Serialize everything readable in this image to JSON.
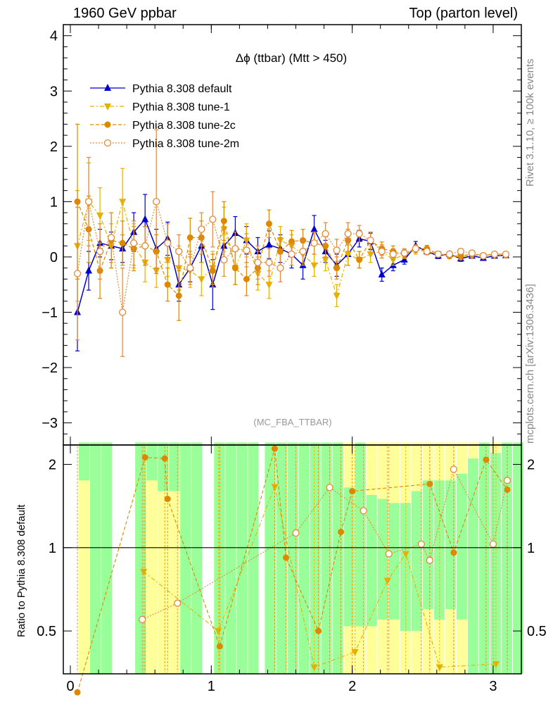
{
  "header": {
    "left": "1960 GeV ppbar",
    "right": "Top (parton level)"
  },
  "side": {
    "rivet": "Rivet 3.1.10, ≥ 100k events",
    "mcplots": "mcplots.cern.ch [arXiv:1306.3436]"
  },
  "chart_data": {
    "type": "line",
    "title": "Δϕ (ttbar) (Mtt > 450)",
    "watermark": "(MC_FBA_TTBAR)",
    "xlabel": "",
    "ylabel": "",
    "ratio_ylabel": "Ratio to Pythia 8.308 default",
    "xlim": [
      -0.05,
      3.2
    ],
    "ylim": [
      -3.4,
      4.2
    ],
    "ratio_ylim": [
      0.35,
      2.35
    ],
    "ratio_scale": "log",
    "x_ticks": [
      "0",
      "1",
      "2",
      "3"
    ],
    "y_ticks": [
      "4",
      "3",
      "2",
      "1",
      "0",
      "−1",
      "−2",
      "−3"
    ],
    "ratio_ticks": [
      "2",
      "1",
      "0.5"
    ],
    "legend_position": "top-left",
    "x": [
      0.05,
      0.13,
      0.21,
      0.29,
      0.37,
      0.45,
      0.53,
      0.61,
      0.69,
      0.77,
      0.85,
      0.93,
      1.01,
      1.09,
      1.17,
      1.25,
      1.33,
      1.41,
      1.49,
      1.57,
      1.65,
      1.73,
      1.81,
      1.89,
      1.97,
      2.05,
      2.13,
      2.21,
      2.29,
      2.37,
      2.45,
      2.53,
      2.61,
      2.69,
      2.77,
      2.85,
      2.93,
      3.01,
      3.09
    ],
    "series": [
      {
        "name": "Pythia 8.308 default",
        "color": "#0000cc",
        "marker": "triangle-up",
        "values": [
          -1.0,
          -0.25,
          0.25,
          0.2,
          0.15,
          0.45,
          0.68,
          0.15,
          0.33,
          -0.5,
          -0.2,
          0.2,
          -0.5,
          0.2,
          0.43,
          0.3,
          0.1,
          0.22,
          0.15,
          0.05,
          -0.15,
          0.5,
          0.1,
          -0.15,
          0.05,
          0.33,
          0.28,
          -0.32,
          -0.15,
          -0.05,
          0.2,
          0.1,
          0.02,
          0.05,
          -0.03,
          0.02,
          -0.02,
          0.02,
          0.03
        ],
        "errors": [
          0.7,
          0.35,
          0.25,
          0.25,
          0.25,
          0.35,
          0.45,
          0.35,
          0.3,
          0.3,
          0.25,
          0.3,
          0.45,
          0.3,
          0.3,
          0.25,
          0.25,
          0.25,
          0.25,
          0.25,
          0.25,
          0.25,
          0.2,
          0.2,
          0.2,
          0.15,
          0.15,
          0.12,
          0.1,
          0.08,
          0.08,
          0.06,
          0.05,
          0.05,
          0.05,
          0.04,
          0.04,
          0.04,
          0.04
        ]
      },
      {
        "name": "Pythia 8.308 tune-1",
        "color": "#e6b000",
        "marker": "triangle-down",
        "values": [
          0.2,
          1.0,
          0.75,
          0.2,
          1.0,
          0.2,
          -0.1,
          -0.25,
          -0.05,
          -0.2,
          -0.25,
          -0.4,
          -0.2,
          0.5,
          -0.2,
          0.3,
          -0.3,
          -0.5,
          0.3,
          0.2,
          0.05,
          -0.15,
          -0.05,
          -0.7,
          0.05,
          -0.05,
          0.05,
          0.1,
          -0.05,
          0.05,
          0.12,
          0.1,
          0.05,
          0.02,
          0.0,
          0.03,
          0.02,
          0.03,
          0.03
        ],
        "errors": [
          1.0,
          0.7,
          0.5,
          0.4,
          0.6,
          0.4,
          0.35,
          0.3,
          0.3,
          0.4,
          0.3,
          0.3,
          0.3,
          0.4,
          0.3,
          0.3,
          0.3,
          0.25,
          0.25,
          0.2,
          0.2,
          0.2,
          0.2,
          0.2,
          0.2,
          0.15,
          0.15,
          0.12,
          0.1,
          0.08,
          0.07,
          0.06,
          0.05,
          0.05,
          0.05,
          0.04,
          0.04,
          0.04,
          0.04
        ]
      },
      {
        "name": "Pythia 8.308 tune-2c",
        "color": "#dd8800",
        "marker": "circle",
        "values": [
          1.0,
          0.5,
          -0.25,
          0.3,
          0.25,
          0.15,
          0.2,
          0.1,
          -0.5,
          -0.7,
          0.35,
          0.35,
          -0.25,
          0.65,
          -0.2,
          -0.4,
          -0.2,
          0.6,
          0.1,
          0.28,
          0.3,
          0.25,
          0.2,
          -0.2,
          0.3,
          -0.05,
          0.3,
          0.15,
          0.1,
          0.05,
          0.15,
          0.15,
          0.05,
          0.02,
          0.02,
          0.05,
          0.03,
          0.05,
          0.05
        ],
        "errors": [
          1.4,
          0.6,
          0.5,
          0.5,
          0.4,
          0.4,
          0.35,
          0.3,
          0.3,
          0.45,
          0.35,
          0.3,
          0.3,
          0.35,
          0.3,
          0.3,
          0.3,
          0.25,
          0.25,
          0.2,
          0.2,
          0.2,
          0.2,
          0.2,
          0.2,
          0.15,
          0.15,
          0.12,
          0.1,
          0.08,
          0.07,
          0.06,
          0.05,
          0.05,
          0.05,
          0.04,
          0.04,
          0.04,
          0.04
        ]
      },
      {
        "name": "Pythia 8.308 tune-2m",
        "color": "#e08a3a",
        "marker": "open-circle",
        "values": [
          -0.3,
          1.0,
          0.1,
          0.35,
          -1.0,
          0.25,
          0.2,
          1.0,
          0.25,
          0.1,
          -0.2,
          0.5,
          0.68,
          -0.05,
          0.15,
          0.12,
          -0.1,
          -0.1,
          -0.2,
          0.05,
          0.1,
          0.25,
          0.42,
          0.12,
          0.42,
          0.42,
          0.3,
          0.1,
          0.05,
          0.07,
          0.15,
          0.1,
          0.05,
          0.05,
          0.1,
          0.07,
          0.02,
          0.05,
          0.05
        ],
        "errors": [
          1.2,
          0.8,
          0.5,
          0.45,
          0.8,
          0.4,
          0.35,
          1.3,
          0.35,
          0.3,
          0.3,
          0.3,
          0.5,
          0.3,
          0.3,
          0.3,
          0.3,
          0.25,
          0.25,
          0.2,
          0.2,
          0.2,
          0.2,
          0.2,
          0.2,
          0.15,
          0.15,
          0.12,
          0.1,
          0.08,
          0.07,
          0.06,
          0.05,
          0.05,
          0.05,
          0.04,
          0.04,
          0.04,
          0.04
        ]
      }
    ],
    "ratio": {
      "bands_green": [
        [
          0.0,
          1.75,
          2.4
        ],
        [
          0.08,
          0.35,
          2.4
        ],
        [
          0.16,
          0.35,
          2.4
        ],
        [
          0.4,
          0.35,
          2.4
        ],
        [
          0.48,
          1.75,
          2.4
        ],
        [
          0.56,
          1.6,
          2.4
        ],
        [
          0.64,
          1.6,
          2.4
        ],
        [
          0.72,
          0.35,
          2.4
        ],
        [
          0.8,
          0.35,
          2.4
        ],
        [
          0.96,
          0.35,
          2.4
        ],
        [
          1.04,
          0.35,
          2.4
        ],
        [
          1.12,
          0.35,
          2.4
        ],
        [
          1.2,
          0.35,
          2.4
        ],
        [
          1.32,
          0.35,
          2.4
        ],
        [
          1.4,
          0.35,
          2.4
        ],
        [
          1.48,
          0.35,
          2.4
        ],
        [
          1.56,
          0.35,
          2.4
        ],
        [
          1.64,
          0.35,
          2.4
        ],
        [
          1.72,
          0.35,
          2.4
        ],
        [
          1.8,
          0.35,
          2.4
        ],
        [
          1.88,
          0.52,
          1.65
        ],
        [
          1.96,
          0.52,
          2.4
        ],
        [
          2.04,
          0.52,
          1.55
        ],
        [
          2.12,
          0.55,
          1.5
        ],
        [
          2.2,
          0.55,
          1.45
        ],
        [
          2.28,
          0.5,
          1.45
        ],
        [
          2.36,
          0.5,
          1.6
        ],
        [
          2.44,
          0.6,
          1.75
        ],
        [
          2.52,
          0.55,
          1.75
        ],
        [
          2.6,
          0.6,
          1.75
        ],
        [
          2.68,
          0.55,
          1.85
        ],
        [
          2.76,
          0.35,
          2.1
        ],
        [
          2.84,
          0.35,
          2.4
        ],
        [
          2.92,
          0.35,
          2.2
        ],
        [
          3.0,
          0.35,
          2.4
        ],
        [
          3.08,
          0.35,
          2.4
        ]
      ],
      "bands_yellow": [
        [
          0.0,
          0.35,
          2.4
        ],
        [
          0.08,
          0.35,
          2.4
        ],
        [
          0.16,
          0.35,
          2.4
        ],
        [
          0.4,
          0.35,
          2.4
        ],
        [
          0.48,
          0.35,
          2.4
        ],
        [
          0.56,
          0.35,
          2.4
        ],
        [
          0.64,
          0.35,
          2.4
        ],
        [
          0.72,
          0.35,
          2.4
        ],
        [
          0.8,
          0.35,
          2.4
        ],
        [
          0.96,
          0.35,
          2.4
        ],
        [
          1.04,
          0.35,
          2.4
        ],
        [
          1.12,
          0.35,
          2.4
        ],
        [
          1.2,
          0.35,
          2.4
        ],
        [
          1.32,
          0.35,
          2.4
        ],
        [
          1.4,
          0.35,
          2.4
        ],
        [
          1.48,
          0.35,
          2.4
        ],
        [
          1.56,
          0.35,
          2.4
        ],
        [
          1.64,
          0.35,
          2.4
        ],
        [
          1.72,
          0.35,
          2.4
        ],
        [
          1.8,
          0.35,
          2.4
        ],
        [
          1.88,
          0.35,
          2.4
        ],
        [
          1.96,
          0.35,
          2.4
        ],
        [
          2.04,
          0.35,
          2.4
        ],
        [
          2.12,
          0.35,
          2.4
        ],
        [
          2.2,
          0.35,
          2.4
        ],
        [
          2.28,
          0.35,
          2.4
        ],
        [
          2.36,
          0.35,
          2.4
        ],
        [
          2.44,
          0.35,
          2.4
        ],
        [
          2.52,
          0.35,
          2.4
        ],
        [
          2.6,
          0.35,
          2.4
        ],
        [
          2.68,
          0.35,
          2.4
        ],
        [
          2.76,
          0.35,
          2.4
        ],
        [
          2.84,
          0.35,
          2.4
        ],
        [
          2.92,
          0.35,
          2.4
        ],
        [
          3.0,
          0.35,
          2.4
        ],
        [
          3.08,
          0.35,
          2.4
        ]
      ],
      "tune1": [
        [
          0.52,
          0.82
        ],
        [
          1.05,
          0.5
        ],
        [
          1.45,
          1.66
        ],
        [
          1.73,
          0.37
        ],
        [
          2.02,
          0.42
        ],
        [
          2.25,
          0.76
        ],
        [
          2.38,
          0.95
        ],
        [
          2.62,
          0.37
        ],
        [
          3.02,
          0.38
        ]
      ],
      "tune2c": [
        [
          0.05,
          0.3
        ],
        [
          0.53,
          2.12
        ],
        [
          0.67,
          2.1
        ],
        [
          0.69,
          1.5
        ],
        [
          1.06,
          0.44
        ],
        [
          1.45,
          2.28
        ],
        [
          1.53,
          0.92
        ],
        [
          1.76,
          0.5
        ],
        [
          1.92,
          1.14
        ],
        [
          2.0,
          1.6
        ],
        [
          2.55,
          1.7
        ],
        [
          2.72,
          0.96
        ],
        [
          2.95,
          2.08
        ],
        [
          3.1,
          1.62
        ]
      ],
      "tune2m": [
        [
          0.51,
          0.55
        ],
        [
          0.76,
          0.63
        ],
        [
          1.6,
          1.13
        ],
        [
          1.84,
          1.65
        ],
        [
          2.08,
          1.36
        ],
        [
          2.26,
          0.95
        ],
        [
          2.49,
          1.03
        ],
        [
          2.55,
          0.9
        ],
        [
          2.72,
          1.92
        ],
        [
          3.0,
          1.03
        ],
        [
          3.1,
          1.75
        ]
      ]
    }
  }
}
